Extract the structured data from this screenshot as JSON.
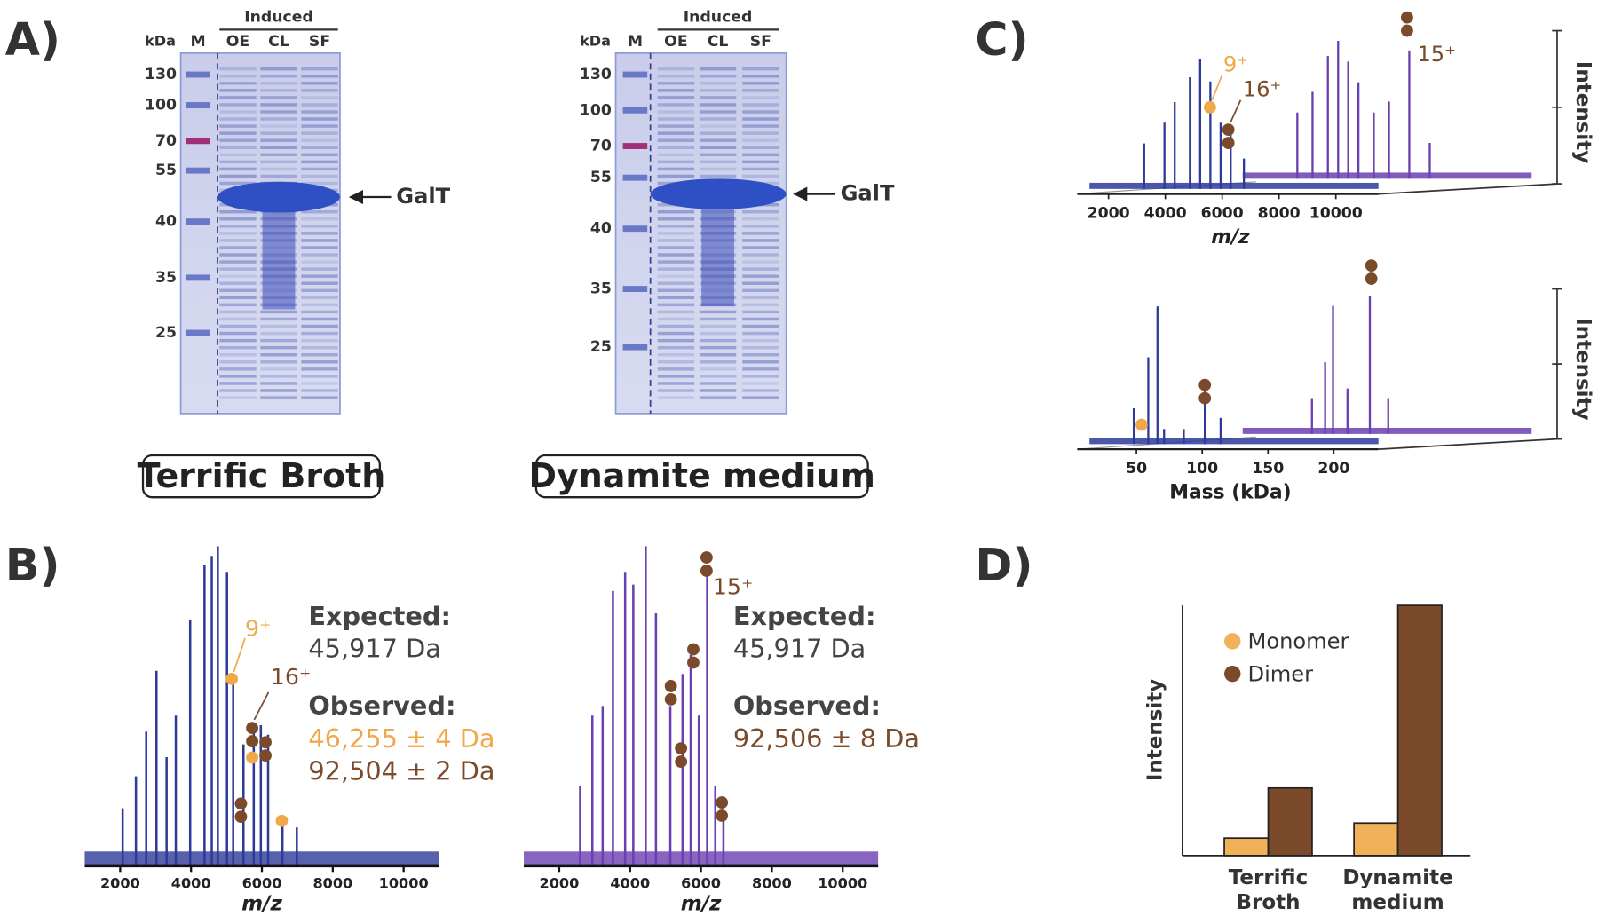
{
  "figure": {
    "panel_a": {
      "label": "A)",
      "gels": [
        {
          "kda_label": "kDa",
          "lanes": [
            "M",
            "OE",
            "CL",
            "SF"
          ],
          "group_label": "Induced",
          "markers": [
            130,
            100,
            70,
            55,
            40,
            35,
            25
          ],
          "band_label": "GalT",
          "medium": "Terrific Broth"
        },
        {
          "kda_label": "kDa",
          "lanes": [
            "M",
            "OE",
            "CL",
            "SF"
          ],
          "group_label": "Induced",
          "markers": [
            130,
            100,
            70,
            55,
            40,
            35,
            25
          ],
          "band_label": "GalT",
          "medium": "Dynamite medium"
        }
      ]
    },
    "panel_b": {
      "label": "B)",
      "spectra": [
        {
          "x_label": "m/z",
          "xlim": [
            1000,
            11000
          ],
          "xticks": [
            2000,
            4000,
            6000,
            8000,
            10000
          ],
          "ylim": [
            0,
            100
          ],
          "color": "#2d3a9a",
          "peaks": {
            "x": [
              2070,
              2445,
              2735,
              3025,
              3310,
              3570,
              3975,
              4380,
              4585,
              4755,
              5015,
              5190,
              5480,
              5770,
              5970,
              6175,
              6580,
              6985
            ],
            "y": [
              18,
              28,
              42,
              61,
              34,
              47,
              77,
              94,
              97,
              100,
              92,
              59,
              38,
              42,
              44,
              41,
              15,
              12
            ]
          },
          "annotations": [
            "9⁺",
            "16⁺"
          ],
          "expected_label": "Expected:",
          "expected": "45,917 Da",
          "observed_label": "Observed:",
          "observed": [
            {
              "text": "46,255 ± 4 Da",
              "color": "#f0a94a"
            },
            {
              "text": "92,504 ± 2 Da",
              "color": "#7a4a2a"
            }
          ]
        },
        {
          "x_label": "m/z",
          "xlim": [
            1000,
            11000
          ],
          "xticks": [
            2000,
            4000,
            6000,
            8000,
            10000
          ],
          "ylim": [
            0,
            100
          ],
          "color": "#6a3fb0",
          "peaks": {
            "x": [
              2590,
              2935,
              3225,
              3515,
              3860,
              4090,
              4440,
              4730,
              5135,
              5480,
              5710,
              5940,
              6175,
              6405,
              6635
            ],
            "y": [
              25,
              47,
              50,
              86,
              92,
              88,
              100,
              79,
              50,
              60,
              66,
              47,
              92,
              25,
              15
            ]
          },
          "annotations": [
            "15⁺"
          ],
          "expected_label": "Expected:",
          "expected": "45,917 Da",
          "observed_label": "Observed:",
          "observed": [
            {
              "text": "92,506 ± 8 Da",
              "color": "#7a4a2a"
            }
          ]
        }
      ]
    },
    "panel_c": {
      "label": "C)",
      "plots": [
        {
          "x_label": "m/z",
          "y_label": "Intensity",
          "xlim": [
            900,
            11500
          ],
          "xticks": [
            2000,
            4000,
            6000,
            8000,
            10000
          ],
          "ylim": [
            0,
            100
          ],
          "series": [
            {
              "color": "#2d3a9a",
              "x": [
                3255,
                3970,
                4330,
                4865,
                5225,
                5585,
                5945,
                6300,
                6765
              ],
              "y": [
                33,
                48,
                63,
                81,
                94,
                78,
                48,
                44,
                22
              ]
            },
            {
              "color": "#6a3fb0",
              "x": [
                3255,
                3790,
                4330,
                4690,
                5045,
                5405,
                5945,
                6480,
                7195,
                7915
              ],
              "y": [
                48,
                63,
                89,
                100,
                85,
                70,
                48,
                56,
                93,
                26
              ]
            }
          ],
          "annotations": [
            "9⁺",
            "16⁺",
            "15⁺"
          ]
        },
        {
          "x_label": "Mass (kDa)",
          "y_label": "Intensity",
          "xlim": [
            5,
            234
          ],
          "xticks": [
            50,
            100,
            150,
            200
          ],
          "ylim": [
            0,
            100
          ],
          "series": [
            {
              "color": "#2d3a9a",
              "x": [
                48,
                59,
                66,
                71,
                86,
                102,
                114
              ],
              "y": [
                26,
                63,
                100,
                11,
                11,
                41,
                19
              ]
            },
            {
              "color": "#6a3fb0",
              "x": [
                67,
                77,
                83,
                94,
                111,
                125
              ],
              "y": [
                26,
                52,
                93,
                33,
                100,
                26
              ]
            }
          ],
          "annotations": []
        }
      ]
    },
    "panel_d": {
      "label": "D)",
      "chart_data": {
        "type": "bar",
        "y_label": "Intensity",
        "categories": [
          "Terrific Broth",
          "Dynamite medium"
        ],
        "ylim": [
          0,
          100
        ],
        "series": [
          {
            "name": "Monomer",
            "color": "#f0b15a",
            "values": [
              7,
              13
            ]
          },
          {
            "name": "Dimer",
            "color": "#7a4a2a",
            "values": [
              27,
              100
            ]
          }
        ]
      }
    }
  }
}
